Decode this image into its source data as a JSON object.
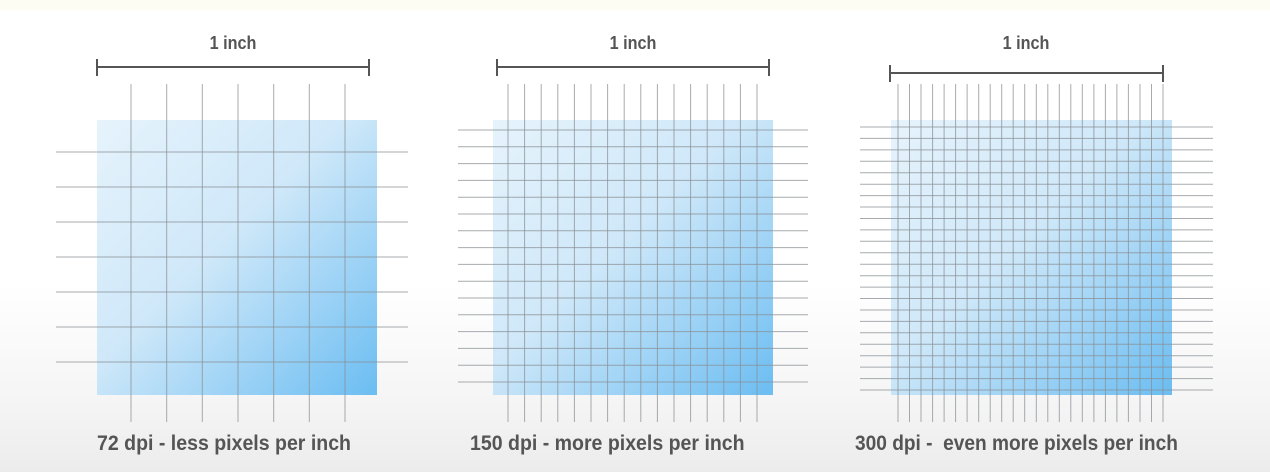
{
  "panels": [
    {
      "id": "72dpi",
      "ruler_label": "1 inch",
      "caption": "72 dpi - less pixels per inch",
      "grid_lines_per_inch": 8
    },
    {
      "id": "150dpi",
      "ruler_label": "1 inch",
      "caption": "150 dpi - more pixels per inch",
      "grid_lines_per_inch": 16
    },
    {
      "id": "300dpi",
      "ruler_label": "1 inch",
      "caption": "300 dpi -  even more pixels per inch",
      "grid_lines_per_inch": 24
    }
  ],
  "colors": {
    "gradient_light": "#e6f3fc",
    "gradient_dark": "#6bbdf2",
    "grid_line": "#8a8f94",
    "ruler": "#555555",
    "text": "#555555"
  }
}
